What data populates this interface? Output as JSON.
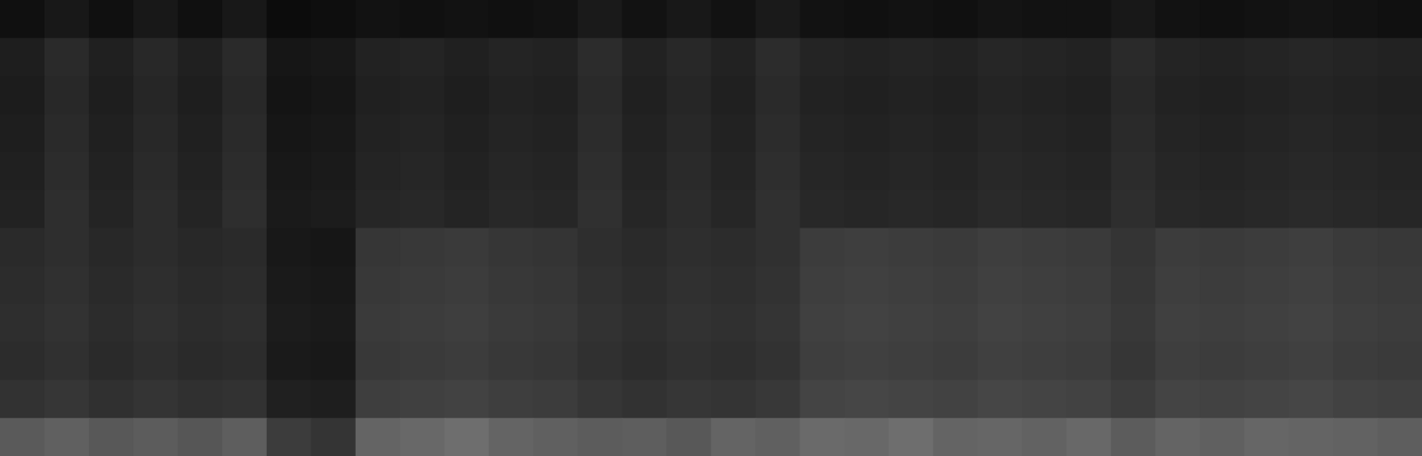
{
  "chart_data": {
    "type": "heatmap",
    "tick_labels": false,
    "color": "#c8c8c8",
    "cells": [
      [
        0.08,
        0.12,
        0.08,
        0.12,
        0.08,
        0.12,
        0.06,
        0.07,
        0.09,
        0.08,
        0.09,
        0.08,
        0.09,
        0.13,
        0.09,
        0.12,
        0.09,
        0.13,
        0.09,
        0.08,
        0.09,
        0.08,
        0.1,
        0.09,
        0.09,
        0.12,
        0.09,
        0.08,
        0.09,
        0.1,
        0.09,
        0.08
      ],
      [
        0.15,
        0.21,
        0.16,
        0.2,
        0.16,
        0.21,
        0.11,
        0.12,
        0.17,
        0.18,
        0.16,
        0.18,
        0.17,
        0.22,
        0.17,
        0.2,
        0.17,
        0.22,
        0.18,
        0.17,
        0.18,
        0.17,
        0.19,
        0.18,
        0.17,
        0.21,
        0.18,
        0.17,
        0.18,
        0.19,
        0.18,
        0.17
      ],
      [
        0.14,
        0.2,
        0.15,
        0.19,
        0.15,
        0.2,
        0.1,
        0.11,
        0.16,
        0.17,
        0.15,
        0.17,
        0.16,
        0.21,
        0.16,
        0.19,
        0.16,
        0.21,
        0.17,
        0.16,
        0.17,
        0.16,
        0.18,
        0.17,
        0.16,
        0.2,
        0.17,
        0.16,
        0.17,
        0.18,
        0.17,
        0.16
      ],
      [
        0.15,
        0.21,
        0.16,
        0.2,
        0.16,
        0.21,
        0.11,
        0.12,
        0.17,
        0.18,
        0.16,
        0.18,
        0.17,
        0.22,
        0.17,
        0.2,
        0.17,
        0.22,
        0.18,
        0.17,
        0.18,
        0.17,
        0.19,
        0.18,
        0.17,
        0.21,
        0.18,
        0.17,
        0.18,
        0.19,
        0.18,
        0.17
      ],
      [
        0.16,
        0.22,
        0.17,
        0.21,
        0.17,
        0.22,
        0.12,
        0.13,
        0.18,
        0.19,
        0.17,
        0.19,
        0.18,
        0.23,
        0.18,
        0.21,
        0.18,
        0.23,
        0.19,
        0.18,
        0.19,
        0.18,
        0.2,
        0.19,
        0.18,
        0.22,
        0.19,
        0.18,
        0.19,
        0.2,
        0.19,
        0.18
      ],
      [
        0.17,
        0.23,
        0.18,
        0.22,
        0.18,
        0.23,
        0.13,
        0.14,
        0.19,
        0.2,
        0.18,
        0.2,
        0.19,
        0.24,
        0.19,
        0.22,
        0.19,
        0.24,
        0.2,
        0.19,
        0.2,
        0.19,
        0.21,
        0.2,
        0.19,
        0.23,
        0.2,
        0.19,
        0.2,
        0.21,
        0.2,
        0.19
      ],
      [
        0.21,
        0.23,
        0.2,
        0.22,
        0.2,
        0.21,
        0.12,
        0.11,
        0.27,
        0.28,
        0.29,
        0.27,
        0.26,
        0.23,
        0.21,
        0.23,
        0.22,
        0.24,
        0.3,
        0.31,
        0.3,
        0.29,
        0.31,
        0.3,
        0.29,
        0.26,
        0.3,
        0.29,
        0.3,
        0.31,
        0.29,
        0.28
      ],
      [
        0.22,
        0.24,
        0.21,
        0.23,
        0.21,
        0.22,
        0.13,
        0.12,
        0.28,
        0.29,
        0.3,
        0.28,
        0.27,
        0.24,
        0.22,
        0.24,
        0.23,
        0.25,
        0.31,
        0.32,
        0.31,
        0.3,
        0.32,
        0.31,
        0.3,
        0.27,
        0.31,
        0.3,
        0.31,
        0.32,
        0.3,
        0.29
      ],
      [
        0.23,
        0.25,
        0.22,
        0.24,
        0.22,
        0.23,
        0.14,
        0.13,
        0.29,
        0.3,
        0.31,
        0.29,
        0.28,
        0.25,
        0.23,
        0.25,
        0.24,
        0.26,
        0.32,
        0.33,
        0.32,
        0.31,
        0.33,
        0.32,
        0.31,
        0.28,
        0.32,
        0.31,
        0.32,
        0.33,
        0.31,
        0.3
      ],
      [
        0.22,
        0.24,
        0.21,
        0.23,
        0.21,
        0.22,
        0.13,
        0.12,
        0.28,
        0.29,
        0.3,
        0.28,
        0.27,
        0.24,
        0.22,
        0.24,
        0.23,
        0.25,
        0.31,
        0.32,
        0.31,
        0.3,
        0.32,
        0.31,
        0.3,
        0.27,
        0.31,
        0.3,
        0.31,
        0.32,
        0.3,
        0.29
      ],
      [
        0.25,
        0.27,
        0.24,
        0.26,
        0.24,
        0.25,
        0.16,
        0.15,
        0.31,
        0.32,
        0.33,
        0.31,
        0.3,
        0.27,
        0.25,
        0.27,
        0.26,
        0.28,
        0.34,
        0.35,
        0.34,
        0.33,
        0.35,
        0.34,
        0.33,
        0.3,
        0.34,
        0.33,
        0.34,
        0.35,
        0.33,
        0.32
      ],
      [
        0.45,
        0.48,
        0.44,
        0.46,
        0.43,
        0.47,
        0.3,
        0.26,
        0.5,
        0.52,
        0.55,
        0.5,
        0.48,
        0.46,
        0.47,
        0.44,
        0.5,
        0.48,
        0.53,
        0.52,
        0.55,
        0.5,
        0.51,
        0.49,
        0.52,
        0.46,
        0.5,
        0.48,
        0.51,
        0.5,
        0.49,
        0.47
      ]
    ]
  }
}
